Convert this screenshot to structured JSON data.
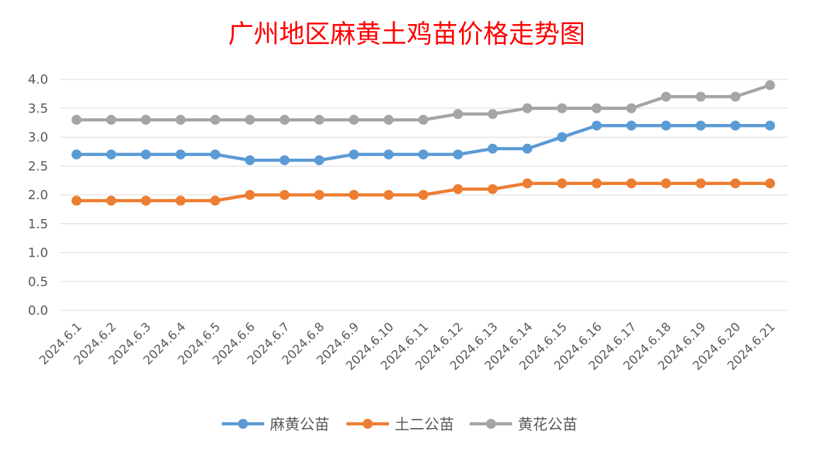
{
  "chart_data": {
    "type": "line",
    "title": "广州地区麻黄土鸡苗价格走势图",
    "title_color": "#ff0000",
    "xlabel": "",
    "ylabel": "",
    "x": [
      "2024.6.1",
      "2024.6.2",
      "2024.6.3",
      "2024.6.4",
      "2024.6.5",
      "2024.6.6",
      "2024.6.7",
      "2024.6.8",
      "2024.6.9",
      "2024.6.10",
      "2024.6.11",
      "2024.6.12",
      "2024.6.13",
      "2024.6.14",
      "2024.6.15",
      "2024.6.16",
      "2024.6.17",
      "2024.6.18",
      "2024.6.19",
      "2024.6.20",
      "2024.6.21"
    ],
    "y_ticks": [
      "0.0",
      "0.5",
      "1.0",
      "1.5",
      "2.0",
      "2.5",
      "3.0",
      "3.5",
      "4.0"
    ],
    "ylim": [
      0,
      4.0
    ],
    "grid": true,
    "legend_position": "bottom",
    "series": [
      {
        "name": "麻黄公苗",
        "color": "#5b9bd5",
        "values": [
          2.7,
          2.7,
          2.7,
          2.7,
          2.7,
          2.6,
          2.6,
          2.6,
          2.7,
          2.7,
          2.7,
          2.7,
          2.8,
          2.8,
          3.0,
          3.2,
          3.2,
          3.2,
          3.2,
          3.2,
          3.2
        ]
      },
      {
        "name": "土二公苗",
        "color": "#ed7d31",
        "values": [
          1.9,
          1.9,
          1.9,
          1.9,
          1.9,
          2.0,
          2.0,
          2.0,
          2.0,
          2.0,
          2.0,
          2.1,
          2.1,
          2.2,
          2.2,
          2.2,
          2.2,
          2.2,
          2.2,
          2.2,
          2.2
        ]
      },
      {
        "name": "黄花公苗",
        "color": "#a5a5a5",
        "values": [
          3.3,
          3.3,
          3.3,
          3.3,
          3.3,
          3.3,
          3.3,
          3.3,
          3.3,
          3.3,
          3.3,
          3.4,
          3.4,
          3.5,
          3.5,
          3.5,
          3.5,
          3.7,
          3.7,
          3.7,
          3.9
        ]
      }
    ]
  }
}
